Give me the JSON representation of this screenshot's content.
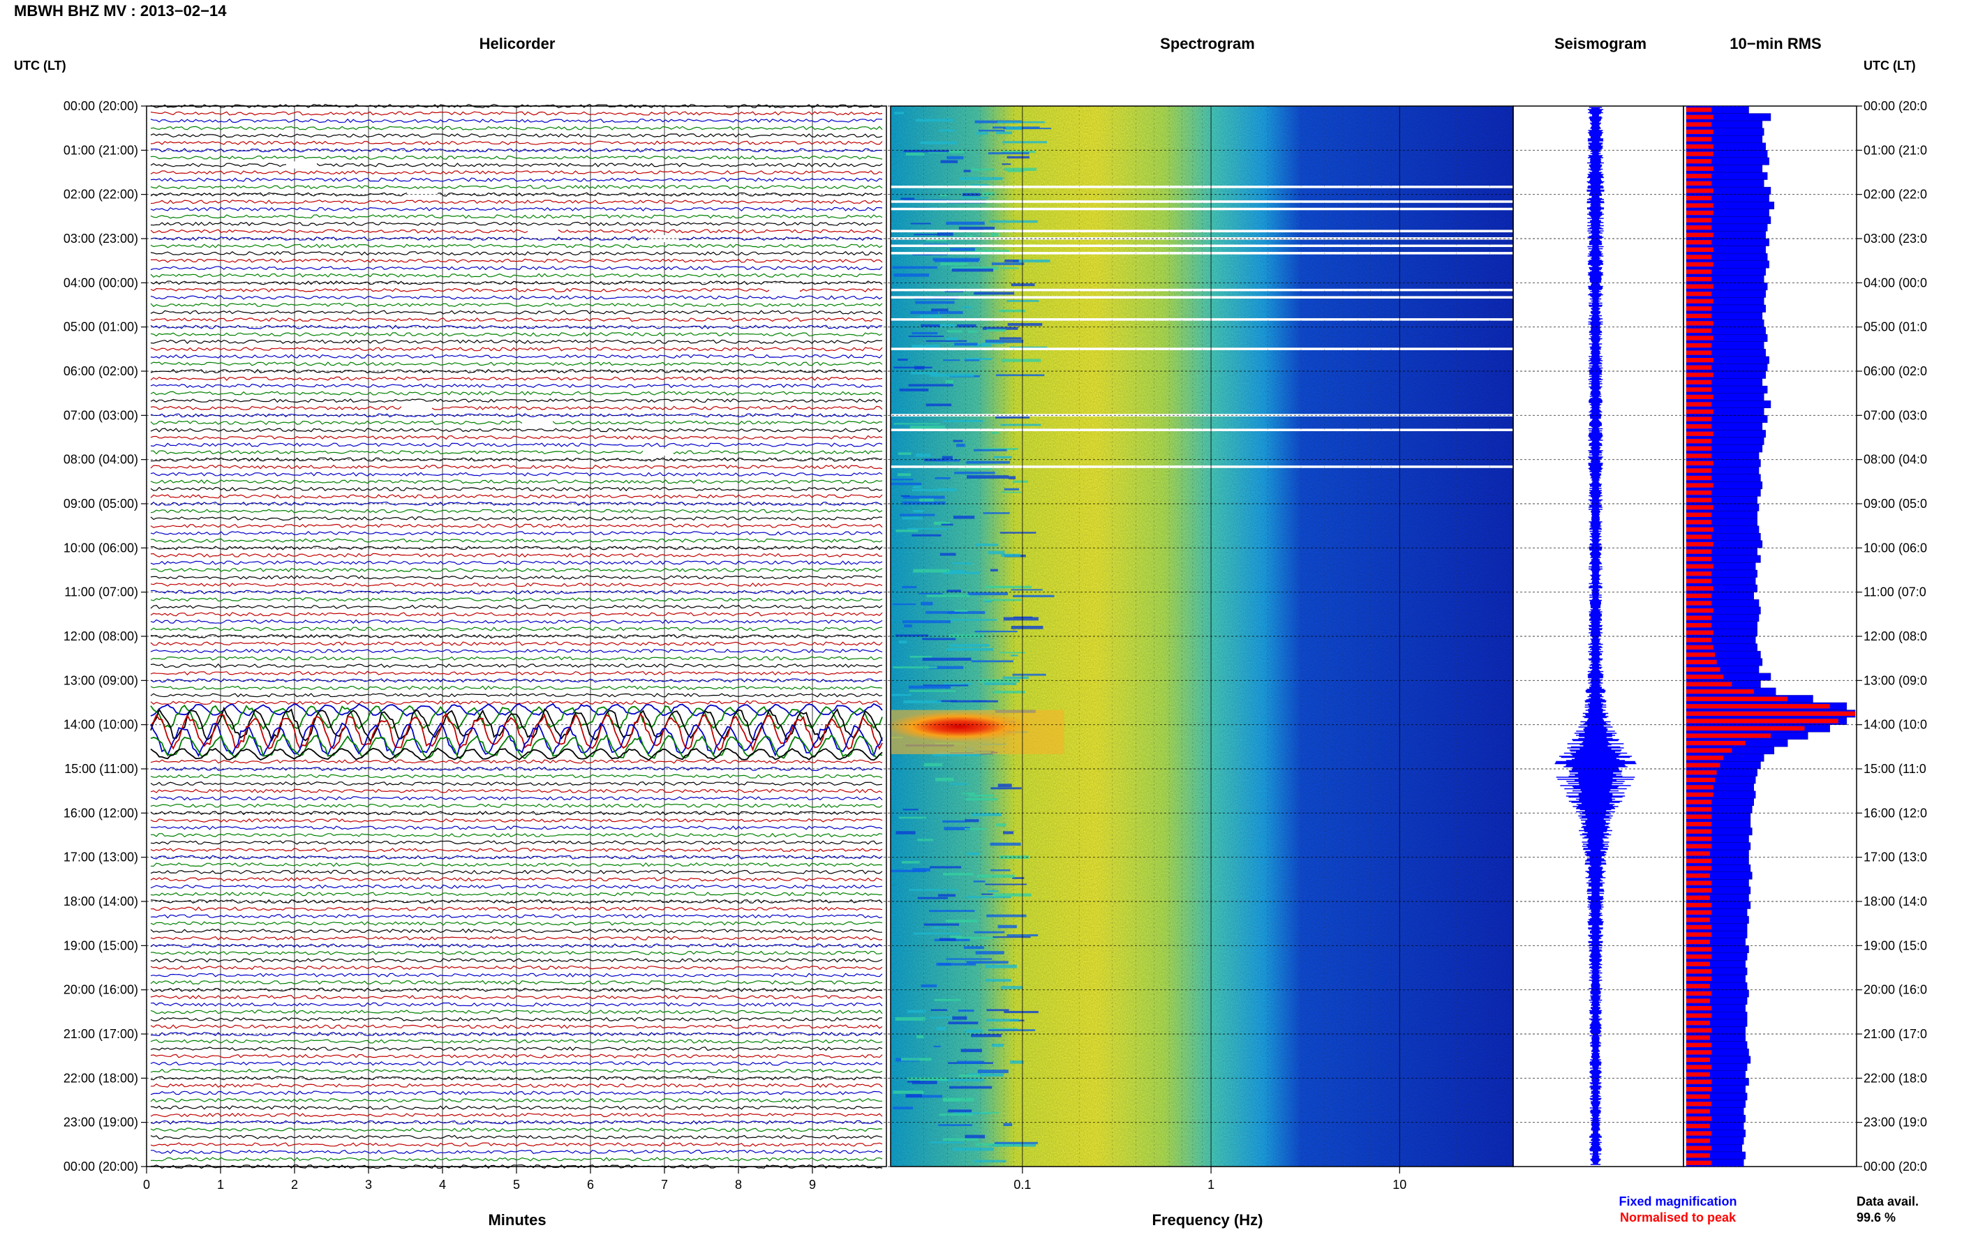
{
  "header": {
    "title": "MBWH BHZ MV : 2013−02−14"
  },
  "panels": {
    "helicorder": "Helicorder",
    "spectrogram": "Spectrogram",
    "seismogram": "Seismogram",
    "rms": "10−min RMS"
  },
  "axes": {
    "left_label": "UTC (LT)",
    "right_label": "UTC (LT)",
    "helicorder_xlabel": "Minutes",
    "spectrogram_xlabel": "Frequency (Hz)"
  },
  "legend": {
    "fixed": "Fixed magnification",
    "normalised": "Normalised to peak",
    "data_avail_label": "Data avail.",
    "data_avail_value": "99.6 %"
  },
  "colors": {
    "trace_cycle": [
      "#000000",
      "#c00000",
      "#0000c8",
      "#008000"
    ],
    "seismogram": "#0000ff",
    "rms_fixed": "#0000ff",
    "rms_normalised": "#ff0000",
    "legend_fixed": "#0000ff",
    "legend_normalised": "#ff0000"
  },
  "chart_data": [
    {
      "type": "line",
      "panel": "Helicorder",
      "xlabel": "Minutes",
      "xlim": [
        0,
        10
      ],
      "xticks": [
        "0",
        "1",
        "2",
        "3",
        "4",
        "5",
        "6",
        "7",
        "8",
        "9"
      ],
      "lines_per_hour": 6,
      "event_window_utc": [
        "13:40",
        "14:40"
      ],
      "gaps_utc": [
        "01:20",
        "02:00",
        "02:50",
        "03:00",
        "04:10",
        "06:50",
        "07:10",
        "07:50"
      ]
    },
    {
      "type": "heatmap",
      "panel": "Spectrogram",
      "xlabel": "Frequency (Hz)",
      "xscale": "log",
      "xlim": [
        0.02,
        40
      ],
      "xtick_labels": [
        "0.1",
        "1",
        "10"
      ],
      "peak_window_utc": [
        "13:40",
        "14:40"
      ],
      "peak_freq_hz": [
        0.03,
        0.1
      ],
      "blank_rows_utc": [
        "01:50",
        "02:10",
        "02:20",
        "02:50",
        "03:00",
        "03:10",
        "03:20",
        "04:10",
        "04:20",
        "04:50",
        "05:30",
        "07:00",
        "07:20",
        "08:10"
      ]
    },
    {
      "type": "line",
      "panel": "Seismogram",
      "series": [
        {
          "values": [
            0.18,
            0.18,
            0.2,
            0.18,
            0.17,
            0.16,
            0.16,
            0.16,
            0.17,
            0.16,
            0.16,
            0.15,
            0.16,
            0.18,
            0.35,
            1.0,
            0.45,
            0.25,
            0.2,
            0.16,
            0.15,
            0.14,
            0.14,
            0.14,
            0.14
          ]
        }
      ]
    },
    {
      "type": "bar",
      "panel": "10-min RMS",
      "orientation": "horizontal",
      "series": [
        {
          "name": "Fixed magnification",
          "values": [
            0.37,
            0.5,
            0.45,
            0.46,
            0.45,
            0.47,
            0.48,
            0.49,
            0.45,
            0.48,
            0.46,
            0.5,
            0.49,
            0.52,
            0.49,
            0.5,
            0.48,
            0.47,
            0.49,
            0.47,
            0.48,
            0.49,
            0.47,
            0.46,
            0.48,
            0.47,
            0.46,
            0.47,
            0.45,
            0.46,
            0.47,
            0.48,
            0.46,
            0.47,
            0.49,
            0.48,
            0.47,
            0.45,
            0.48,
            0.46,
            0.5,
            0.46,
            0.48,
            0.45,
            0.47,
            0.46,
            0.45,
            0.43,
            0.44,
            0.43,
            0.44,
            0.45,
            0.44,
            0.42,
            0.43,
            0.42,
            0.42,
            0.43,
            0.44,
            0.45,
            0.42,
            0.44,
            0.41,
            0.42,
            0.41,
            0.42,
            0.4,
            0.43,
            0.44,
            0.43,
            0.42,
            0.42,
            0.41,
            0.42,
            0.44,
            0.45,
            0.43,
            0.5,
            0.44,
            0.53,
            0.75,
            0.95,
            1.0,
            0.95,
            0.85,
            0.72,
            0.6,
            0.52,
            0.46,
            0.44,
            0.42,
            0.41,
            0.4,
            0.41,
            0.4,
            0.39,
            0.38,
            0.38,
            0.39,
            0.37,
            0.38,
            0.37,
            0.37,
            0.38,
            0.39,
            0.37,
            0.38,
            0.37,
            0.38,
            0.36,
            0.37,
            0.36,
            0.36,
            0.35,
            0.37,
            0.36,
            0.35,
            0.36,
            0.35,
            0.36,
            0.37,
            0.36,
            0.35,
            0.36,
            0.36,
            0.35,
            0.35,
            0.36,
            0.37,
            0.38,
            0.36,
            0.35,
            0.37,
            0.35,
            0.36,
            0.35,
            0.34,
            0.35,
            0.34,
            0.35,
            0.34,
            0.33,
            0.35,
            0.34
          ]
        },
        {
          "name": "Normalised to peak",
          "values": [
            0.15,
            0.16,
            0.15,
            0.16,
            0.15,
            0.16,
            0.16,
            0.15,
            0.16,
            0.15,
            0.15,
            0.16,
            0.15,
            0.16,
            0.16,
            0.15,
            0.15,
            0.16,
            0.15,
            0.16,
            0.15,
            0.16,
            0.15,
            0.15,
            0.16,
            0.15,
            0.16,
            0.15,
            0.15,
            0.16,
            0.15,
            0.16,
            0.15,
            0.15,
            0.16,
            0.15,
            0.16,
            0.15,
            0.15,
            0.16,
            0.15,
            0.16,
            0.15,
            0.15,
            0.16,
            0.15,
            0.15,
            0.15,
            0.16,
            0.15,
            0.15,
            0.16,
            0.15,
            0.15,
            0.16,
            0.15,
            0.15,
            0.16,
            0.15,
            0.16,
            0.15,
            0.15,
            0.16,
            0.15,
            0.15,
            0.16,
            0.15,
            0.15,
            0.16,
            0.15,
            0.15,
            0.16,
            0.15,
            0.16,
            0.17,
            0.18,
            0.2,
            0.22,
            0.27,
            0.4,
            0.6,
            0.85,
            1.0,
            0.9,
            0.7,
            0.5,
            0.35,
            0.27,
            0.22,
            0.2,
            0.18,
            0.17,
            0.16,
            0.16,
            0.15,
            0.15,
            0.15,
            0.15,
            0.15,
            0.15,
            0.15,
            0.14,
            0.15,
            0.15,
            0.14,
            0.15,
            0.15,
            0.14,
            0.15,
            0.15,
            0.14,
            0.15,
            0.15,
            0.14,
            0.15,
            0.15,
            0.14,
            0.15,
            0.15,
            0.14,
            0.15,
            0.14,
            0.15,
            0.15,
            0.14,
            0.15,
            0.14,
            0.15,
            0.15,
            0.14,
            0.15,
            0.14,
            0.15,
            0.15,
            0.14,
            0.15,
            0.14,
            0.15,
            0.14,
            0.15,
            0.14,
            0.15,
            0.14,
            0.15
          ]
        }
      ]
    }
  ],
  "time_labels": [
    "00:00 (20:00)",
    "01:00 (21:00)",
    "02:00 (22:00)",
    "03:00 (23:00)",
    "04:00 (00:00)",
    "05:00 (01:00)",
    "06:00 (02:00)",
    "07:00 (03:00)",
    "08:00 (04:00)",
    "09:00 (05:00)",
    "10:00 (06:00)",
    "11:00 (07:00)",
    "12:00 (08:00)",
    "13:00 (09:00)",
    "14:00 (10:00)",
    "15:00 (11:00)",
    "16:00 (12:00)",
    "17:00 (13:00)",
    "18:00 (14:00)",
    "19:00 (15:00)",
    "20:00 (16:00)",
    "21:00 (17:00)",
    "22:00 (18:00)",
    "23:00 (19:00)",
    "00:00 (20:00)"
  ],
  "time_labels_right": [
    "00:00 (20:0",
    "01:00 (21:0",
    "02:00 (22:0",
    "03:00 (23:0",
    "04:00 (00:0",
    "05:00 (01:0",
    "06:00 (02:0",
    "07:00 (03:0",
    "08:00 (04:0",
    "09:00 (05:0",
    "10:00 (06:0",
    "11:00 (07:0",
    "12:00 (08:0",
    "13:00 (09:0",
    "14:00 (10:0",
    "15:00 (11:0",
    "16:00 (12:0",
    "17:00 (13:0",
    "18:00 (14:0",
    "19:00 (15:0",
    "20:00 (16:0",
    "21:00 (17:0",
    "22:00 (18:0",
    "23:00 (19:0",
    "00:00 (20:0"
  ]
}
